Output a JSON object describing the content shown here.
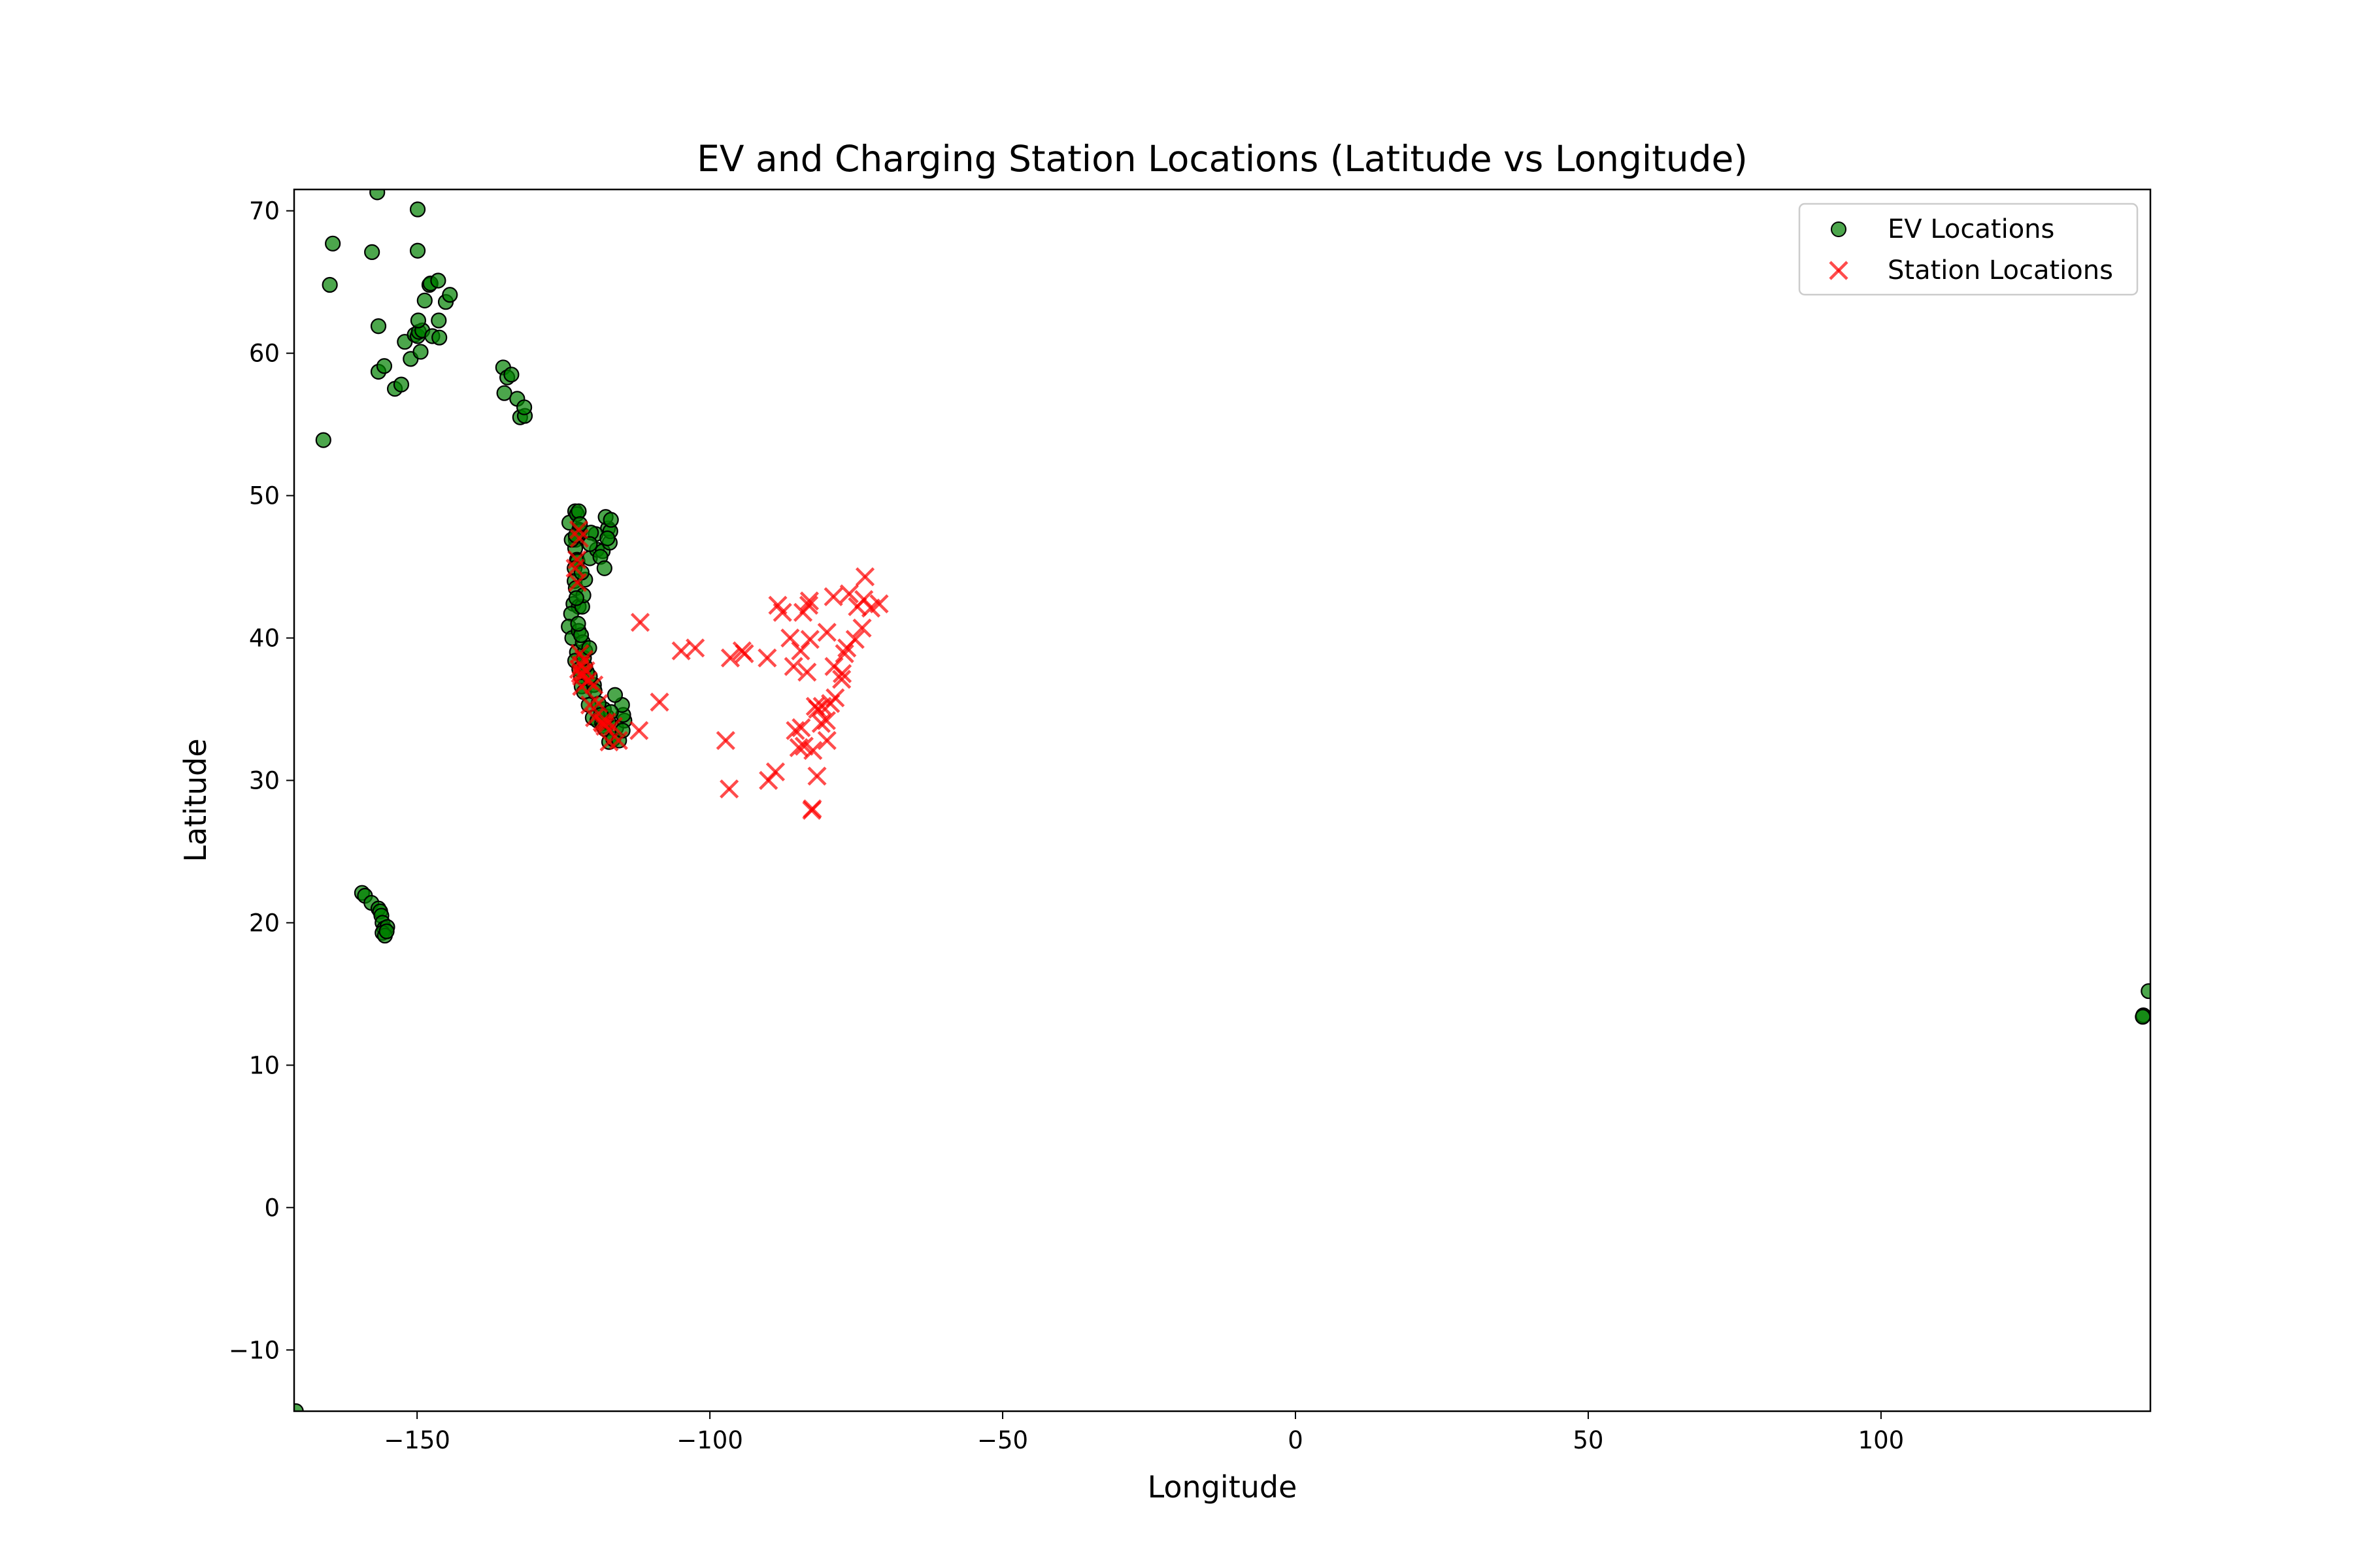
{
  "chart_data": {
    "type": "scatter",
    "title": "EV and Charging Station Locations (Latitude vs Longitude)",
    "xlabel": "Longitude",
    "ylabel": "Latitude",
    "xlim": [
      -171,
      146
    ],
    "ylim": [
      -14.3,
      71.5
    ],
    "xticks": [
      -150,
      -100,
      -50,
      0,
      50,
      100
    ],
    "xtick_labels": [
      "−150",
      "−100",
      "−50",
      "0",
      "50",
      "100"
    ],
    "yticks": [
      -10,
      0,
      10,
      20,
      30,
      40,
      50,
      60,
      70
    ],
    "ytick_labels": [
      "−10",
      "0",
      "10",
      "20",
      "30",
      "40",
      "50",
      "60",
      "70"
    ],
    "grid": false,
    "legend_position": "top-right",
    "series": [
      {
        "name": "EV Locations",
        "marker": "circle",
        "color": "#008000",
        "edge_color": "#000000",
        "points": [
          [
            -170.7,
            -14.3
          ],
          [
            -166,
            53.9
          ],
          [
            -164.9,
            64.8
          ],
          [
            -164.4,
            67.7
          ],
          [
            -157.7,
            67.1
          ],
          [
            -156.8,
            71.3
          ],
          [
            -156.6,
            61.9
          ],
          [
            -156.6,
            58.7
          ],
          [
            -155.6,
            59.1
          ],
          [
            -153.8,
            57.5
          ],
          [
            -152.7,
            57.8
          ],
          [
            -152.1,
            60.8
          ],
          [
            -151.1,
            59.6
          ],
          [
            -150.4,
            61.3
          ],
          [
            -149.9,
            61.2
          ],
          [
            -149.7,
            61.5
          ],
          [
            -149.4,
            60.1
          ],
          [
            -149.1,
            61.6
          ],
          [
            -149.8,
            62.3
          ],
          [
            -148.7,
            63.7
          ],
          [
            -147.9,
            64.8
          ],
          [
            -147.7,
            64.9
          ],
          [
            -146.4,
            65.1
          ],
          [
            -147.4,
            61.2
          ],
          [
            -146.2,
            61.1
          ],
          [
            -146.3,
            62.3
          ],
          [
            -145.1,
            63.6
          ],
          [
            -144.4,
            64.1
          ],
          [
            -149.9,
            70.1
          ],
          [
            -149.9,
            67.2
          ],
          [
            -135.3,
            59.0
          ],
          [
            -134.6,
            58.3
          ],
          [
            -133.9,
            58.5
          ],
          [
            -135.1,
            57.2
          ],
          [
            -132.9,
            56.8
          ],
          [
            -132.4,
            55.5
          ],
          [
            -131.6,
            55.6
          ],
          [
            -131.7,
            56.2
          ],
          [
            -159.4,
            22.1
          ],
          [
            -158.9,
            21.9
          ],
          [
            -157.8,
            21.4
          ],
          [
            -156.6,
            21.0
          ],
          [
            -156.3,
            20.8
          ],
          [
            -156.1,
            20.5
          ],
          [
            -155.9,
            20.0
          ],
          [
            -155.6,
            19.6
          ],
          [
            -155.1,
            19.7
          ],
          [
            -155.9,
            19.3
          ],
          [
            -155.5,
            19.1
          ],
          [
            -155.2,
            19.4
          ],
          [
            145.7,
            15.2
          ],
          [
            144.8,
            13.5
          ],
          [
            144.7,
            13.4
          ],
          [
            -124.0,
            48.1
          ],
          [
            -123.0,
            48.9
          ],
          [
            -122.7,
            48.7
          ],
          [
            -122.4,
            48.9
          ],
          [
            -122.3,
            47.6
          ],
          [
            -122.2,
            47.5
          ],
          [
            -122.6,
            47.1
          ],
          [
            -122.9,
            46.9
          ],
          [
            -123.0,
            46.3
          ],
          [
            -122.7,
            45.5
          ],
          [
            -122.6,
            45.4
          ],
          [
            -123.1,
            44.9
          ],
          [
            -123.1,
            44.0
          ],
          [
            -122.9,
            43.5
          ],
          [
            -123.3,
            42.4
          ],
          [
            -122.4,
            42.2
          ],
          [
            -123.7,
            41.7
          ],
          [
            -124.1,
            40.8
          ],
          [
            -123.5,
            40.0
          ],
          [
            -122.4,
            40.5
          ],
          [
            -122.7,
            39.0
          ],
          [
            -123.0,
            38.4
          ],
          [
            -122.3,
            37.8
          ],
          [
            -122.0,
            37.3
          ],
          [
            -121.9,
            36.6
          ],
          [
            -121.5,
            36.2
          ],
          [
            -120.7,
            35.3
          ],
          [
            -120.0,
            34.4
          ],
          [
            -119.2,
            34.2
          ],
          [
            -118.4,
            34.0
          ],
          [
            -118.2,
            33.8
          ],
          [
            -117.9,
            33.6
          ],
          [
            -117.2,
            32.7
          ],
          [
            -116.5,
            32.9
          ],
          [
            -116.0,
            33.7
          ],
          [
            -115.5,
            32.8
          ],
          [
            -117.3,
            34.1
          ],
          [
            -117.6,
            34.5
          ],
          [
            -118.1,
            35.0
          ],
          [
            -119.0,
            35.4
          ],
          [
            -119.8,
            36.7
          ],
          [
            -120.5,
            37.3
          ],
          [
            -121.0,
            37.6
          ],
          [
            -121.3,
            38.0
          ],
          [
            -121.5,
            38.6
          ],
          [
            -121.3,
            39.1
          ],
          [
            -121.7,
            39.7
          ],
          [
            -122.0,
            40.2
          ],
          [
            -122.5,
            41.0
          ],
          [
            -121.8,
            42.2
          ],
          [
            -121.3,
            44.1
          ],
          [
            -120.5,
            45.6
          ],
          [
            -119.3,
            46.2
          ],
          [
            -118.3,
            46.1
          ],
          [
            -117.4,
            47.7
          ],
          [
            -117.1,
            46.7
          ],
          [
            -117.8,
            48.5
          ],
          [
            -118.7,
            45.7
          ],
          [
            -119.5,
            47.3
          ],
          [
            -120.3,
            47.4
          ],
          [
            -120.5,
            46.6
          ],
          [
            -117.0,
            47.5
          ],
          [
            -116.9,
            48.3
          ],
          [
            -117.5,
            47.0
          ],
          [
            -118.0,
            44.9
          ],
          [
            -114.6,
            34.2
          ],
          [
            -114.8,
            34.6
          ],
          [
            -115.0,
            35.3
          ],
          [
            -116.2,
            36.0
          ],
          [
            -114.9,
            33.5
          ],
          [
            -116.9,
            34.8
          ],
          [
            -118.6,
            34.6
          ],
          [
            -119.7,
            36.3
          ],
          [
            -120.6,
            39.3
          ],
          [
            -121.6,
            43.0
          ],
          [
            -123.6,
            46.9
          ],
          [
            -122.9,
            47.2
          ],
          [
            -122.2,
            48.0
          ],
          [
            -121.9,
            44.6
          ],
          [
            -122.8,
            42.8
          ]
        ]
      },
      {
        "name": "Station Locations",
        "marker": "x",
        "color": "#ff0000",
        "points": [
          [
            -122.4,
            47.6
          ],
          [
            -122.3,
            47.0
          ],
          [
            -122.7,
            45.5
          ],
          [
            -123.0,
            44.9
          ],
          [
            -122.6,
            43.9
          ],
          [
            -122.2,
            38.9
          ],
          [
            -122.4,
            37.8
          ],
          [
            -122.1,
            37.5
          ],
          [
            -121.9,
            37.3
          ],
          [
            -121.5,
            38.5
          ],
          [
            -122.0,
            38.1
          ],
          [
            -121.2,
            37.7
          ],
          [
            -120.8,
            37.0
          ],
          [
            -119.8,
            36.7
          ],
          [
            -119.0,
            35.4
          ],
          [
            -118.4,
            34.1
          ],
          [
            -118.2,
            34.0
          ],
          [
            -117.9,
            33.8
          ],
          [
            -117.6,
            34.1
          ],
          [
            -117.2,
            32.7
          ],
          [
            -116.5,
            33.8
          ],
          [
            -115.6,
            32.8
          ],
          [
            -119.7,
            34.4
          ],
          [
            -120.5,
            35.3
          ],
          [
            -121.9,
            36.6
          ],
          [
            -112.1,
            33.5
          ],
          [
            -111.9,
            41.1
          ],
          [
            -108.6,
            35.5
          ],
          [
            -104.9,
            39.1
          ],
          [
            -102.5,
            39.3
          ],
          [
            -97.3,
            32.8
          ],
          [
            -96.7,
            29.4
          ],
          [
            -96.5,
            38.6
          ],
          [
            -94.5,
            39.1
          ],
          [
            -94.1,
            38.9
          ],
          [
            -90.2,
            38.6
          ],
          [
            -90.0,
            30.0
          ],
          [
            -88.8,
            30.6
          ],
          [
            -88.4,
            42.3
          ],
          [
            -87.6,
            41.8
          ],
          [
            -86.3,
            40.0
          ],
          [
            -85.7,
            38.0
          ],
          [
            -85.4,
            33.5
          ],
          [
            -84.8,
            32.3
          ],
          [
            -84.4,
            33.7
          ],
          [
            -84.1,
            41.8
          ],
          [
            -83.4,
            37.6
          ],
          [
            -83.1,
            42.3
          ],
          [
            -83.0,
            42.6
          ],
          [
            -82.6,
            27.9
          ],
          [
            -82.4,
            32.1
          ],
          [
            -82.0,
            35.2
          ],
          [
            -81.7,
            30.3
          ],
          [
            -81.6,
            35.0
          ],
          [
            -81.0,
            34.0
          ],
          [
            -80.8,
            35.2
          ],
          [
            -80.1,
            34.2
          ],
          [
            -80.0,
            32.8
          ],
          [
            -79.4,
            35.4
          ],
          [
            -78.6,
            35.8
          ],
          [
            -78.8,
            38.0
          ],
          [
            -77.4,
            37.5
          ],
          [
            -77.5,
            37.1
          ],
          [
            -77.0,
            38.9
          ],
          [
            -76.6,
            39.3
          ],
          [
            -75.2,
            39.9
          ],
          [
            -74.0,
            40.7
          ],
          [
            -73.7,
            42.7
          ],
          [
            -73.5,
            44.3
          ],
          [
            -71.1,
            42.4
          ],
          [
            -72.5,
            42.1
          ],
          [
            -74.8,
            42.2
          ],
          [
            -76.2,
            43.1
          ],
          [
            -78.9,
            42.9
          ],
          [
            -80.0,
            40.4
          ],
          [
            -82.9,
            39.9
          ],
          [
            -84.5,
            39.1
          ],
          [
            -82.5,
            28.0
          ],
          [
            -83.9,
            32.4
          ]
        ]
      }
    ]
  }
}
